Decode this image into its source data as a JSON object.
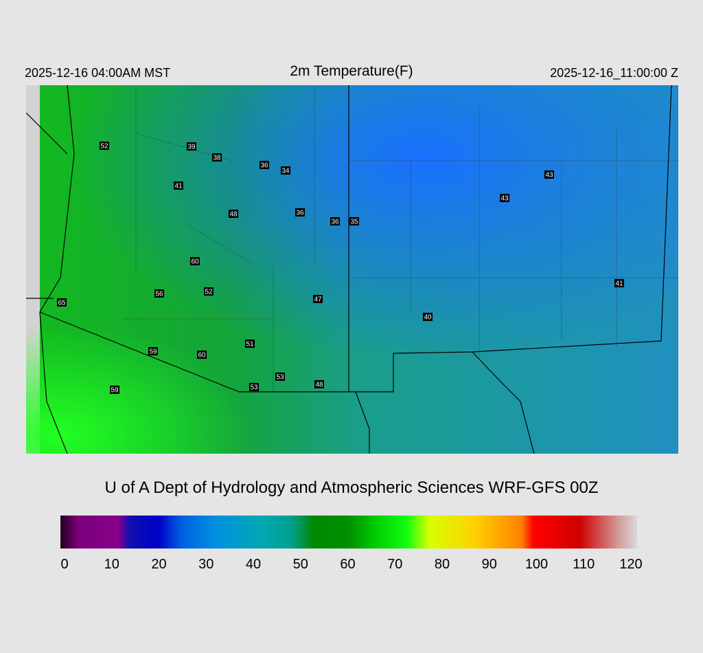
{
  "header": {
    "local_time": "2025-12-16 04:00AM MST",
    "title": "2m Temperature(F)",
    "utc_time": "2025-12-16_11:00:00 Z"
  },
  "stations": [
    52,
    39,
    38,
    36,
    34,
    41,
    48,
    36,
    36,
    35,
    43,
    43,
    60,
    56,
    52,
    47,
    65,
    41,
    40,
    51,
    59,
    60,
    53,
    53,
    48,
    59
  ],
  "footer": "U of A Dept of Hydrology and Atmospheric Sciences WRF-GFS 00Z",
  "colorbar": {
    "ticks": [
      0,
      10,
      20,
      30,
      40,
      50,
      60,
      70,
      80,
      90,
      100,
      110,
      120
    ]
  }
}
